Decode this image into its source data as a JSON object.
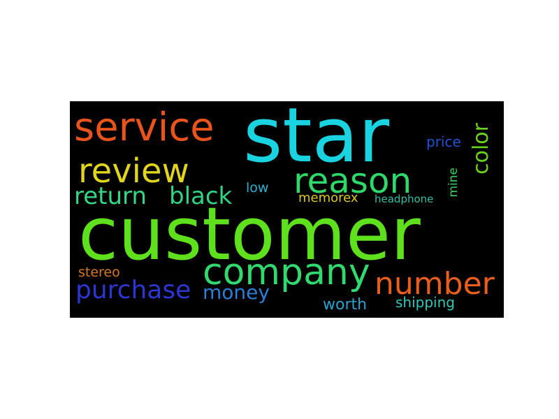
{
  "words": {
    "customer": {
      "text": "customer",
      "color": "#5ee01c"
    },
    "star": {
      "text": "star",
      "color": "#1ad3e0"
    },
    "service": {
      "text": "service",
      "color": "#e8541c"
    },
    "review": {
      "text": "review",
      "color": "#e1d51e"
    },
    "reason": {
      "text": "reason",
      "color": "#2ed96a"
    },
    "company": {
      "text": "company",
      "color": "#32d96e"
    },
    "number": {
      "text": "number",
      "color": "#e95e1d"
    },
    "return": {
      "text": "return",
      "color": "#36d784"
    },
    "black": {
      "text": "black",
      "color": "#30d483"
    },
    "purchase": {
      "text": "purchase",
      "color": "#2c37d3"
    },
    "money": {
      "text": "money",
      "color": "#2a7fd5"
    },
    "color": {
      "text": "color",
      "color": "#6ad31e"
    },
    "price": {
      "text": "price",
      "color": "#2353d2"
    },
    "low": {
      "text": "low",
      "color": "#2ab2d0"
    },
    "memorex": {
      "text": "memorex",
      "color": "#d8c81e"
    },
    "headphone": {
      "text": "headphone",
      "color": "#2ebfa6"
    },
    "mine": {
      "text": "mine",
      "color": "#36d35e"
    },
    "stereo": {
      "text": "stereo",
      "color": "#d5791e"
    },
    "worth": {
      "text": "worth",
      "color": "#2aa2cf"
    },
    "shipping": {
      "text": "shipping",
      "color": "#2fc7b7"
    }
  }
}
